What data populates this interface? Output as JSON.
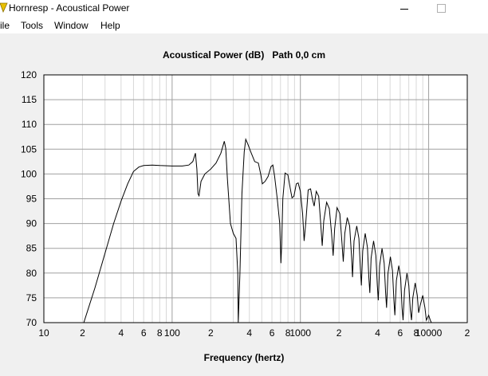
{
  "window": {
    "title": "Hornresp - Acoustical Power"
  },
  "menu": {
    "items": [
      "ile",
      "Tools",
      "Window",
      "Help"
    ]
  },
  "colors": {
    "plot_background": "#ffffff",
    "panel_background": "#f0f0f0",
    "grid_major": "#a0a0a0",
    "grid_minor": "#d8d8d8",
    "curve": "#000000"
  },
  "chart_data": {
    "type": "line",
    "title": "Acoustical Power (dB)   Path 0,0 cm",
    "xlabel": "Frequency (hertz)",
    "ylabel": "",
    "x_scale": "log",
    "xlim": [
      10,
      20000
    ],
    "ylim": [
      70,
      120
    ],
    "grid": true,
    "x_tick_labels": [
      {
        "x": 10,
        "label": "10"
      },
      {
        "x": 20,
        "label": "2"
      },
      {
        "x": 40,
        "label": "4"
      },
      {
        "x": 60,
        "label": "6"
      },
      {
        "x": 80,
        "label": "8"
      },
      {
        "x": 100,
        "label": "100"
      },
      {
        "x": 200,
        "label": "2"
      },
      {
        "x": 400,
        "label": "4"
      },
      {
        "x": 600,
        "label": "6"
      },
      {
        "x": 800,
        "label": "8"
      },
      {
        "x": 1000,
        "label": "1000"
      },
      {
        "x": 2000,
        "label": "2"
      },
      {
        "x": 4000,
        "label": "4"
      },
      {
        "x": 6000,
        "label": "6"
      },
      {
        "x": 8000,
        "label": "8"
      },
      {
        "x": 10000,
        "label": "10000"
      },
      {
        "x": 20000,
        "label": "2"
      }
    ],
    "y_ticks": [
      70,
      75,
      80,
      85,
      90,
      95,
      100,
      105,
      110,
      115,
      120
    ],
    "series": [
      {
        "points": [
          [
            20.5,
            70
          ],
          [
            25,
            77
          ],
          [
            30,
            84
          ],
          [
            35,
            90
          ],
          [
            40,
            94.5
          ],
          [
            45,
            98
          ],
          [
            50,
            100.5
          ],
          [
            55,
            101.4
          ],
          [
            60,
            101.7
          ],
          [
            70,
            101.8
          ],
          [
            80,
            101.7
          ],
          [
            100,
            101.6
          ],
          [
            120,
            101.6
          ],
          [
            135,
            101.8
          ],
          [
            145,
            102.5
          ],
          [
            152,
            104.2
          ],
          [
            156,
            101
          ],
          [
            159,
            96
          ],
          [
            162,
            95.6
          ],
          [
            168,
            98.5
          ],
          [
            180,
            100
          ],
          [
            200,
            101
          ],
          [
            220,
            102.2
          ],
          [
            240,
            104.2
          ],
          [
            255,
            106.6
          ],
          [
            262,
            105.2
          ],
          [
            270,
            99
          ],
          [
            285,
            90
          ],
          [
            300,
            88
          ],
          [
            315,
            87
          ],
          [
            325,
            80
          ],
          [
            328,
            70
          ],
          [
            338,
            80
          ],
          [
            350,
            96
          ],
          [
            365,
            104.5
          ],
          [
            375,
            107
          ],
          [
            390,
            106
          ],
          [
            410,
            104.5
          ],
          [
            440,
            102.5
          ],
          [
            470,
            102.2
          ],
          [
            490,
            100
          ],
          [
            505,
            98
          ],
          [
            530,
            98.5
          ],
          [
            560,
            99.5
          ],
          [
            590,
            101.5
          ],
          [
            610,
            101.8
          ],
          [
            630,
            99.5
          ],
          [
            660,
            95
          ],
          [
            690,
            90
          ],
          [
            705,
            82
          ],
          [
            715,
            86
          ],
          [
            730,
            95
          ],
          [
            760,
            100.2
          ],
          [
            800,
            99.8
          ],
          [
            835,
            97
          ],
          [
            860,
            95.2
          ],
          [
            890,
            95.5
          ],
          [
            930,
            98
          ],
          [
            960,
            98.2
          ],
          [
            1000,
            96.5
          ],
          [
            1040,
            92
          ],
          [
            1070,
            86.5
          ],
          [
            1100,
            90
          ],
          [
            1150,
            96.8
          ],
          [
            1200,
            97
          ],
          [
            1240,
            95
          ],
          [
            1280,
            93.5
          ],
          [
            1330,
            96.5
          ],
          [
            1390,
            95.5
          ],
          [
            1440,
            90
          ],
          [
            1480,
            85.5
          ],
          [
            1520,
            90.5
          ],
          [
            1600,
            94.3
          ],
          [
            1680,
            93
          ],
          [
            1750,
            88
          ],
          [
            1800,
            83.5
          ],
          [
            1850,
            89
          ],
          [
            1930,
            93.2
          ],
          [
            2030,
            92
          ],
          [
            2110,
            86
          ],
          [
            2160,
            82.3
          ],
          [
            2220,
            88
          ],
          [
            2320,
            91.2
          ],
          [
            2420,
            89.5
          ],
          [
            2510,
            83
          ],
          [
            2550,
            79.2
          ],
          [
            2620,
            86.5
          ],
          [
            2750,
            89.5
          ],
          [
            2860,
            87
          ],
          [
            2940,
            80.5
          ],
          [
            2990,
            77.5
          ],
          [
            3060,
            84.5
          ],
          [
            3200,
            88
          ],
          [
            3330,
            85.2
          ],
          [
            3420,
            79
          ],
          [
            3480,
            76
          ],
          [
            3560,
            83
          ],
          [
            3720,
            86.5
          ],
          [
            3880,
            83.5
          ],
          [
            3980,
            77.5
          ],
          [
            4050,
            74.5
          ],
          [
            4150,
            81.5
          ],
          [
            4330,
            85
          ],
          [
            4500,
            82
          ],
          [
            4620,
            76
          ],
          [
            4700,
            73
          ],
          [
            4820,
            80
          ],
          [
            5030,
            83.3
          ],
          [
            5220,
            80.5
          ],
          [
            5360,
            74.5
          ],
          [
            5450,
            71.5
          ],
          [
            5600,
            78.5
          ],
          [
            5850,
            81.5
          ],
          [
            6050,
            79
          ],
          [
            6200,
            73
          ],
          [
            6320,
            70.5
          ],
          [
            6480,
            76.5
          ],
          [
            6780,
            80
          ],
          [
            7000,
            77.5
          ],
          [
            7200,
            72.5
          ],
          [
            7350,
            70.5
          ],
          [
            7520,
            75
          ],
          [
            7850,
            78
          ],
          [
            8150,
            75.5
          ],
          [
            8350,
            72
          ],
          [
            8600,
            73.5
          ],
          [
            9000,
            75.5
          ],
          [
            9350,
            73
          ],
          [
            9600,
            70.5
          ],
          [
            10000,
            71.5
          ],
          [
            10300,
            70.5
          ],
          [
            10500,
            70
          ]
        ]
      }
    ]
  }
}
